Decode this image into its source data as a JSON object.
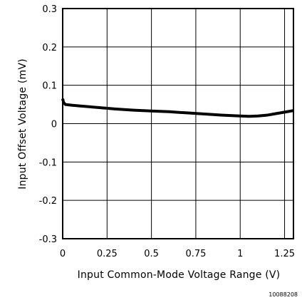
{
  "chart_data": {
    "type": "line",
    "title": "",
    "xlabel": "Input Common-Mode Voltage Range (V)",
    "ylabel": "Input Offset Voltage (mV)",
    "xlim": [
      0,
      1.3
    ],
    "ylim": [
      -0.3,
      0.3
    ],
    "x_ticks": [
      0,
      0.25,
      0.5,
      0.75,
      1,
      1.25
    ],
    "x_tick_labels": [
      "0",
      "0.25",
      "0.5",
      "0.75",
      "1",
      "1.25"
    ],
    "y_ticks": [
      0.3,
      0.2,
      0.1,
      0,
      -0.1,
      -0.2,
      -0.3
    ],
    "y_tick_labels": [
      "0.3",
      "0.2",
      "0.1",
      "0",
      "-0.1",
      "-0.2",
      "-0.3"
    ],
    "grid": true,
    "legend": "none",
    "line_color": "#000000",
    "series": [
      {
        "values": [
          [
            0.0,
            0.065
          ],
          [
            0.005,
            0.055
          ],
          [
            0.015,
            0.05
          ],
          [
            0.05,
            0.048
          ],
          [
            0.1,
            0.046
          ],
          [
            0.2,
            0.042
          ],
          [
            0.3,
            0.038
          ],
          [
            0.4,
            0.035
          ],
          [
            0.5,
            0.033
          ],
          [
            0.6,
            0.031
          ],
          [
            0.7,
            0.028
          ],
          [
            0.8,
            0.025
          ],
          [
            0.9,
            0.022
          ],
          [
            1.0,
            0.02
          ],
          [
            1.05,
            0.019
          ],
          [
            1.1,
            0.02
          ],
          [
            1.15,
            0.022
          ],
          [
            1.2,
            0.026
          ],
          [
            1.25,
            0.03
          ],
          [
            1.3,
            0.034
          ]
        ]
      }
    ],
    "figure_id": "10088208"
  }
}
